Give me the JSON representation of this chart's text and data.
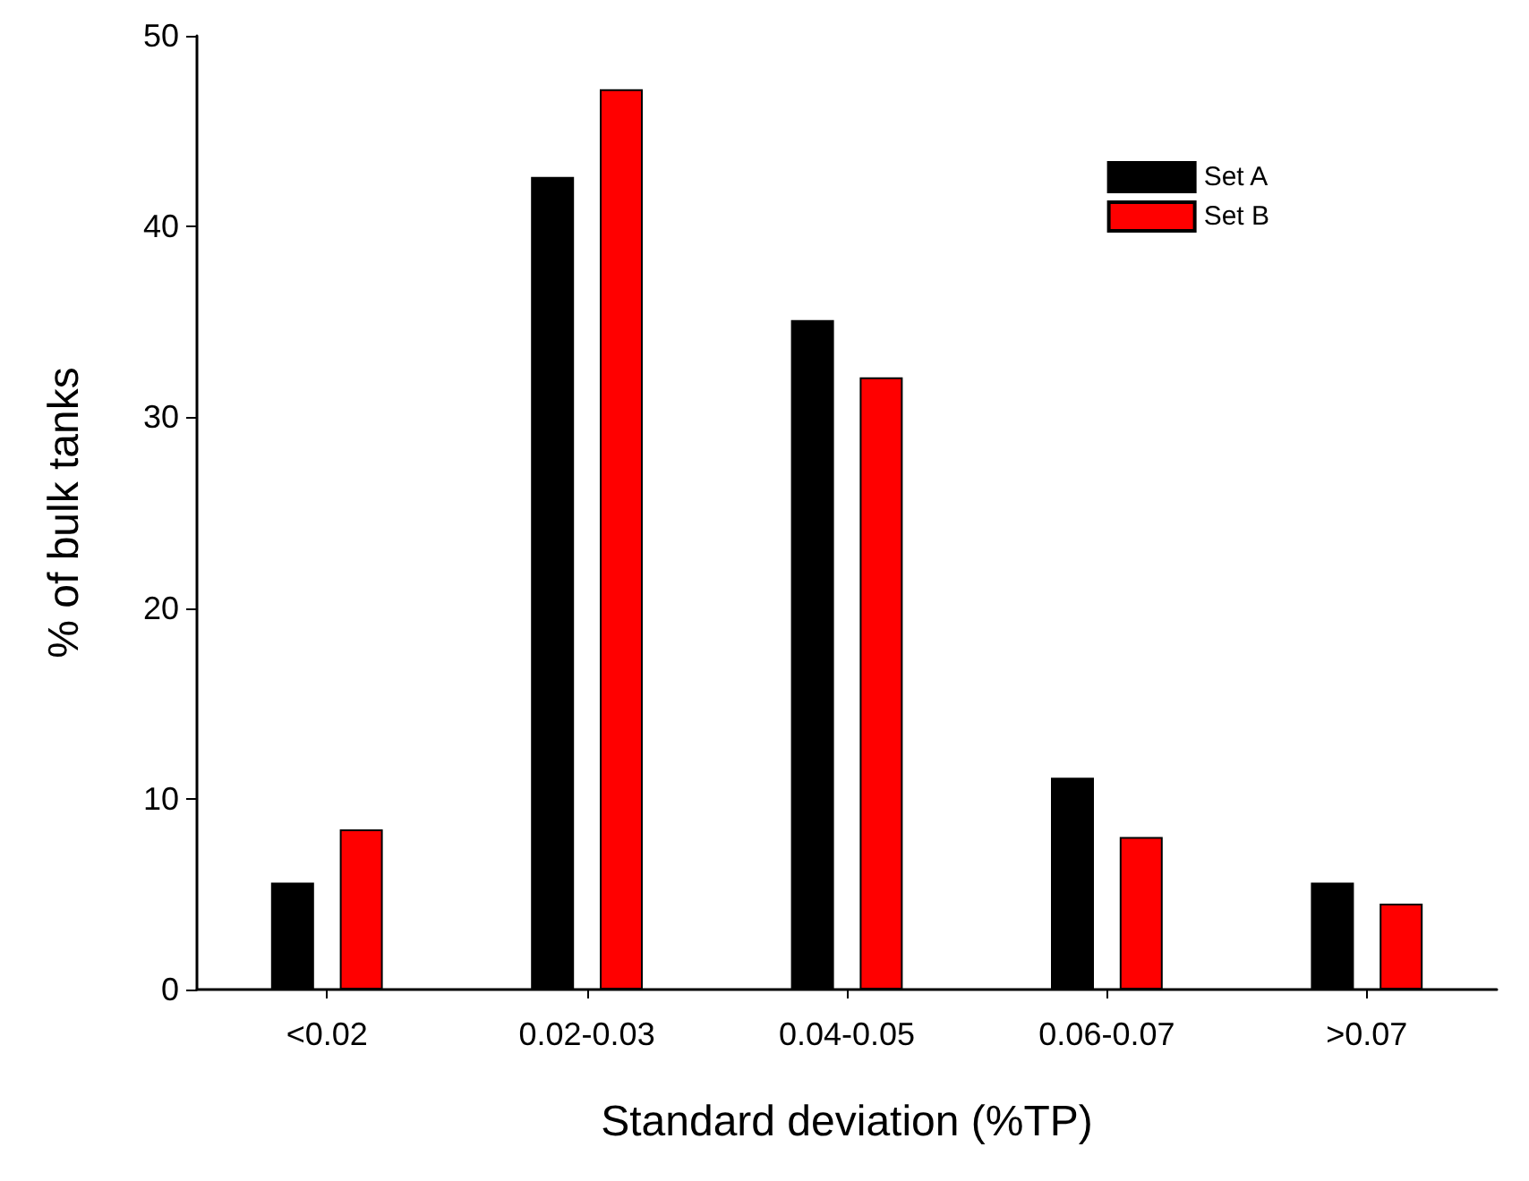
{
  "chart_data": {
    "type": "bar",
    "xlabel": "Standard deviation (%TP)",
    "ylabel": "% of bulk tanks",
    "categories": [
      "<0.02",
      "0.02-0.03",
      "0.04-0.05",
      "0.06-0.07",
      ">0.07"
    ],
    "series": [
      {
        "name": "Set A",
        "color": "#000000",
        "values": [
          5.6,
          42.6,
          35.1,
          11.1,
          5.6
        ]
      },
      {
        "name": "Set B",
        "color": "#ff0000",
        "values": [
          8.4,
          47.2,
          32.1,
          8.0,
          4.5
        ]
      }
    ],
    "ylim": [
      0,
      50
    ],
    "yticks": [
      0,
      10,
      20,
      30,
      40,
      50
    ],
    "grid": false,
    "legend": "top right"
  }
}
